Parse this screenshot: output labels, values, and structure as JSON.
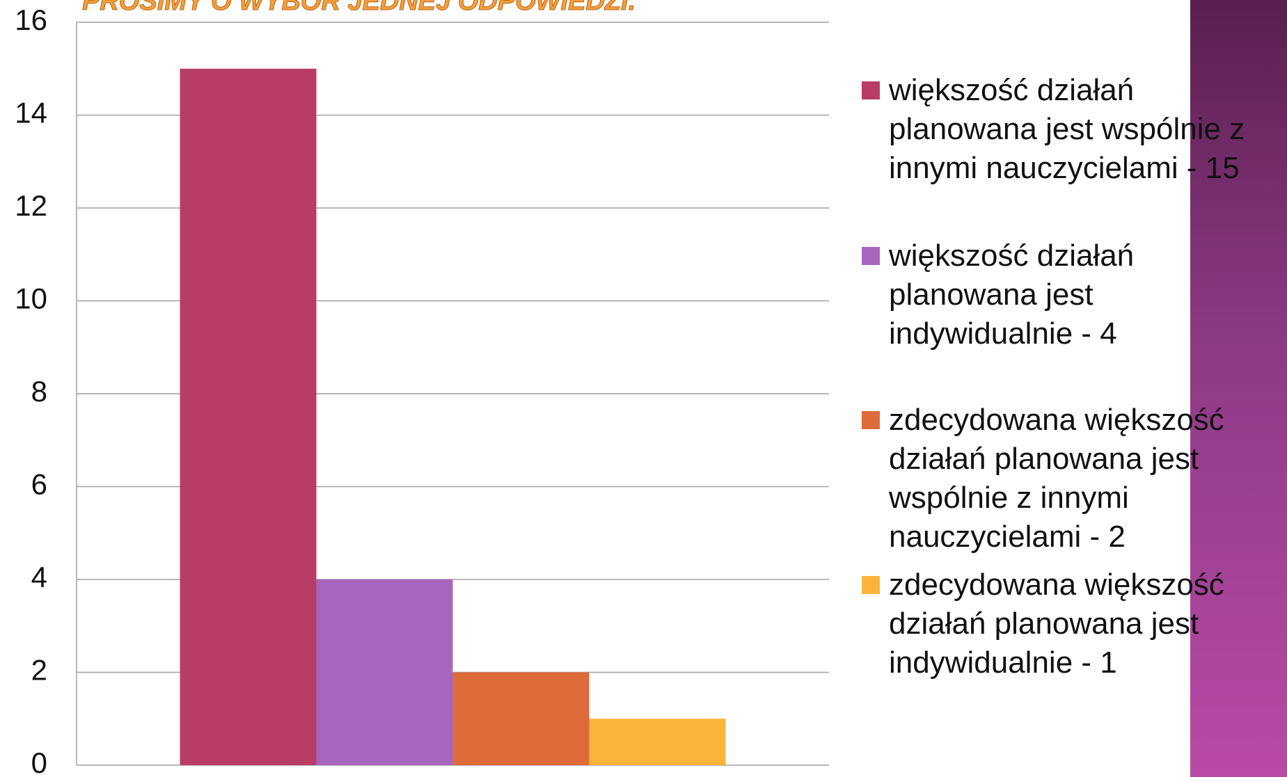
{
  "chart_data": {
    "type": "bar",
    "title": "PROSIMY O WYBÓR JEDNEJ ODPOWIEDZI.",
    "categories": [
      null
    ],
    "series": [
      {
        "name": "większość działań planowana jest wspólnie z innymi nauczycielami - 15",
        "color": "#b83d65",
        "values": [
          15
        ]
      },
      {
        "name": "większość działań planowana jest indywidualnie - 4",
        "color": "#a865be",
        "values": [
          4
        ]
      },
      {
        "name": "zdecydowana większość działań planowana jest wspólnie z innymi nauczycielami - 2",
        "color": "#de6b3a",
        "values": [
          2
        ]
      },
      {
        "name": "zdecydowana większość działań planowana jest indywidualnie - 1",
        "color": "#f9b53a",
        "values": [
          1
        ]
      }
    ],
    "ylim": [
      0,
      16
    ],
    "yticks": [
      0,
      2,
      4,
      6,
      8,
      10,
      12,
      14,
      16
    ],
    "grid": true,
    "legend": "right"
  }
}
